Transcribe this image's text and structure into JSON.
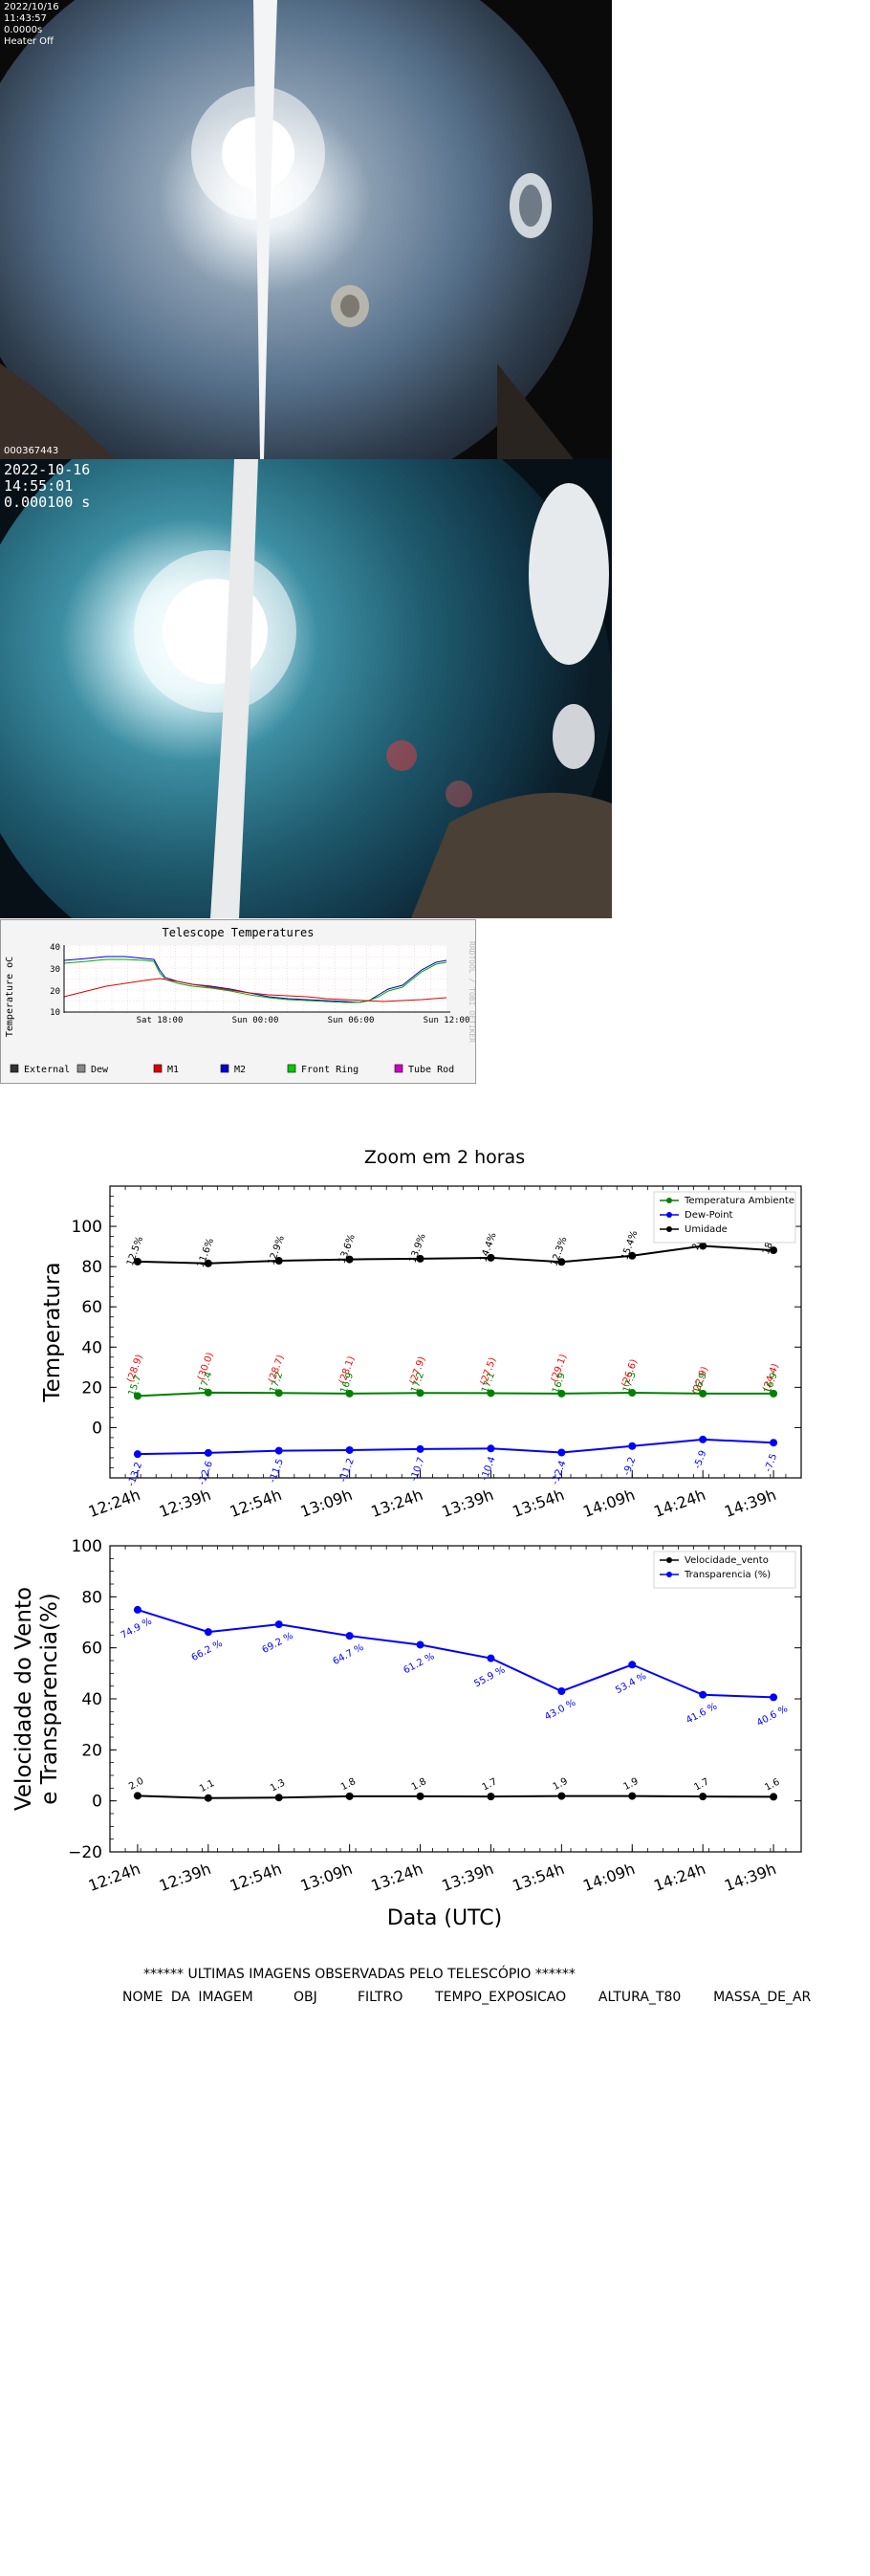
{
  "camera1": {
    "overlay": "2022/10/16\n11:43:57\n0.0000s\nHeater Off",
    "image_id": "000367443"
  },
  "camera2": {
    "overlay": "2022-10-16\n14:55:01\n0.000100 s"
  },
  "telescope_temperatures": {
    "title": "Telescope Temperatures",
    "ylabel": "Temperature oC",
    "watermark": "RRDTOOL / TOBI OETIKER",
    "yticks": [
      "10",
      "20",
      "30",
      "40"
    ],
    "xticks": [
      "Sat 18:00",
      "Sun 00:00",
      "Sun 06:00",
      "Sun 12:00"
    ],
    "legend": [
      {
        "label": "External",
        "color": "#333333"
      },
      {
        "label": "Dew",
        "color": "#888888"
      },
      {
        "label": "M1",
        "color": "#dd0000"
      },
      {
        "label": "M2",
        "color": "#0000cc"
      },
      {
        "label": "Front Ring",
        "color": "#00cc00"
      },
      {
        "label": "Tube Rod",
        "color": "#cc00cc"
      }
    ]
  },
  "chart_data": [
    {
      "type": "line",
      "title": "Zoom em 2 horas",
      "ylabel": "Temperatura",
      "categories": [
        "12:24h",
        "12:39h",
        "12:54h",
        "13:09h",
        "13:24h",
        "13:39h",
        "13:54h",
        "14:09h",
        "14:24h",
        "14:39h"
      ],
      "yticks": [
        "0",
        "20",
        "40",
        "60",
        "80",
        "100"
      ],
      "ylim": [
        -25,
        120
      ],
      "series": [
        {
          "name": "Temperatura Ambiente",
          "color": "#008000",
          "values": [
            15.7,
            17.4,
            17.2,
            16.9,
            17.2,
            17.1,
            16.9,
            17.3,
            16.9,
            16.9
          ],
          "labels": [
            "15.7",
            "17.4",
            "17.2",
            "16.9",
            "17.2",
            "17.1",
            "16.9",
            "17.3",
            "16.9",
            "16.9"
          ]
        },
        {
          "name": "Dew-Point",
          "color": "#0000ff",
          "values": [
            -13.2,
            -12.6,
            -11.5,
            -11.2,
            -10.7,
            -10.4,
            -12.4,
            -9.2,
            -5.9,
            -7.5
          ],
          "labels": [
            "-13.2",
            "-12.6",
            "-11.5",
            "-11.2",
            "-10.7",
            "-10.4",
            "-12.4",
            "-9.2",
            "-5.9",
            "-7.5"
          ]
        },
        {
          "name": "Umidade",
          "color": "#000000",
          "values": [
            82.5,
            81.6,
            82.9,
            83.6,
            83.9,
            84.4,
            82.3,
            85.4,
            90.3,
            88.1
          ],
          "labels": [
            "12.5%",
            "11.6%",
            "12.9%",
            "13.6%",
            "13.9%",
            "14.4%",
            "12.3%",
            "15.4%",
            "20.3%",
            "18.1%"
          ]
        }
      ],
      "annotations": {
        "color": "#ff0000",
        "values": [
          28.9,
          30.0,
          28.7,
          28.1,
          27.9,
          27.5,
          29.1,
          26.6,
          22.9,
          24.4
        ],
        "labels": [
          "(28.9)",
          "(30.0)",
          "(28.7)",
          "(28.1)",
          "(27.9)",
          "(27.5)",
          "(29.1)",
          "(26.6)",
          "(22.9)",
          "(24.4)"
        ]
      },
      "legend_position": "top-right"
    },
    {
      "type": "line",
      "ylabel": "Velocidade do Vento\ne Transparencia(%)",
      "xlabel": "Data (UTC)",
      "categories": [
        "12:24h",
        "12:39h",
        "12:54h",
        "13:09h",
        "13:24h",
        "13:39h",
        "13:54h",
        "14:09h",
        "14:24h",
        "14:39h"
      ],
      "yticks": [
        "−20",
        "0",
        "20",
        "40",
        "60",
        "80",
        "100"
      ],
      "ylim": [
        -20,
        100
      ],
      "series": [
        {
          "name": "Velocidade_vento",
          "color": "#000000",
          "values": [
            2.0,
            1.1,
            1.3,
            1.8,
            1.8,
            1.7,
            1.9,
            1.9,
            1.7,
            1.6
          ],
          "labels": [
            "2.0",
            "1.1",
            "1.3",
            "1.8",
            "1.8",
            "1.7",
            "1.9",
            "1.9",
            "1.7",
            "1.6"
          ]
        },
        {
          "name": "Transparencia (%)",
          "color": "#0000ff",
          "values": [
            74.9,
            66.2,
            69.2,
            64.7,
            61.2,
            55.9,
            43.0,
            53.4,
            41.6,
            40.6
          ],
          "labels": [
            "74.9 %",
            "66.2 %",
            "69.2 %",
            "64.7 %",
            "61.2 %",
            "55.9 %",
            "43.0 %",
            "53.4 %",
            "41.6 %",
            "40.6 %"
          ]
        }
      ],
      "legend_position": "top-right"
    }
  ],
  "observations": {
    "title": "****** ULTIMAS IMAGENS OBSERVADAS PELO TELESCÓPIO ******",
    "header": "NOME DA IMAGEM     OBJ     FILTRO    TEMPO_EXPOSICAO    ALTURA_T80    MASSA_DE_AR"
  }
}
